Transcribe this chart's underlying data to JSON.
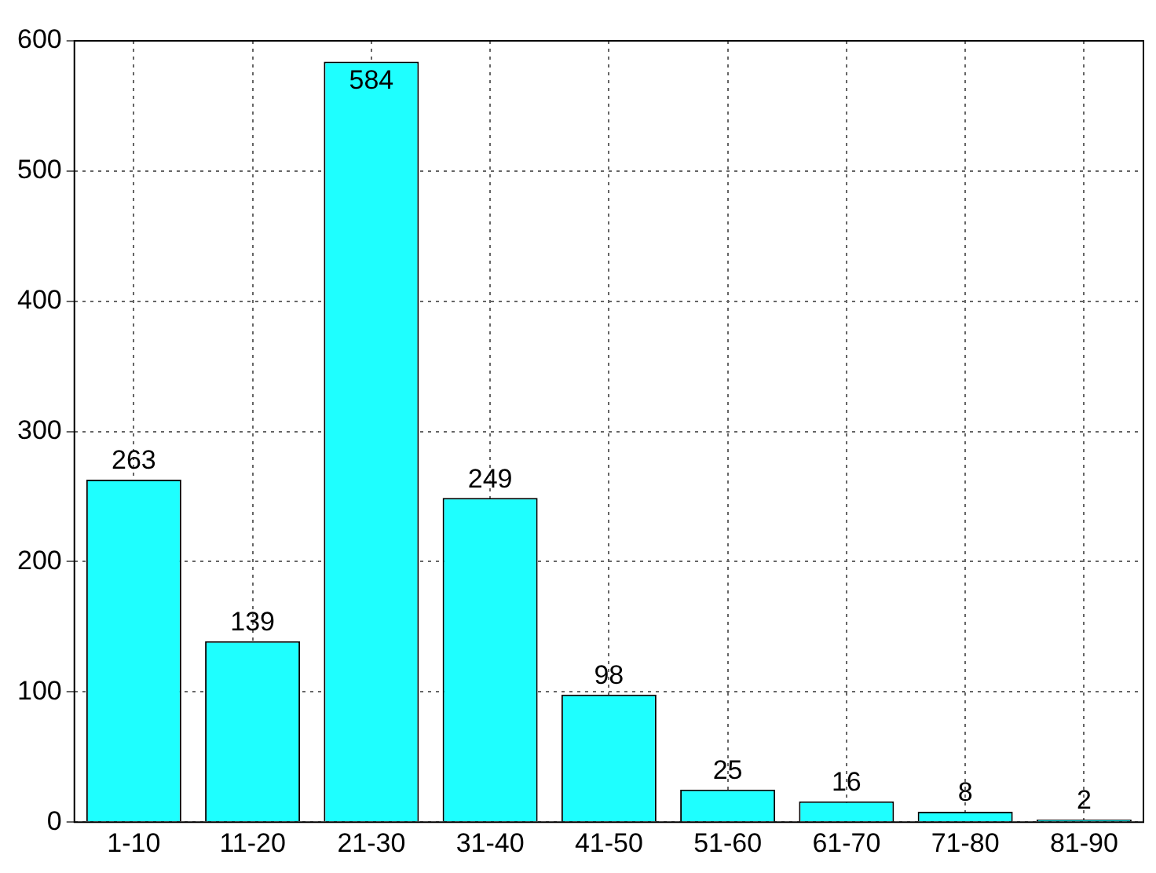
{
  "chart_data": {
    "type": "bar",
    "categories": [
      "1-10",
      "11-20",
      "21-30",
      "31-40",
      "41-50",
      "51-60",
      "61-70",
      "71-80",
      "81-90"
    ],
    "values": [
      263,
      139,
      584,
      249,
      98,
      25,
      16,
      8,
      2
    ],
    "color": "#1effff",
    "ylim": [
      0,
      600
    ],
    "yticks": [
      0,
      100,
      200,
      300,
      400,
      500,
      600
    ],
    "grid": true,
    "data_labels": true,
    "legend": false
  }
}
